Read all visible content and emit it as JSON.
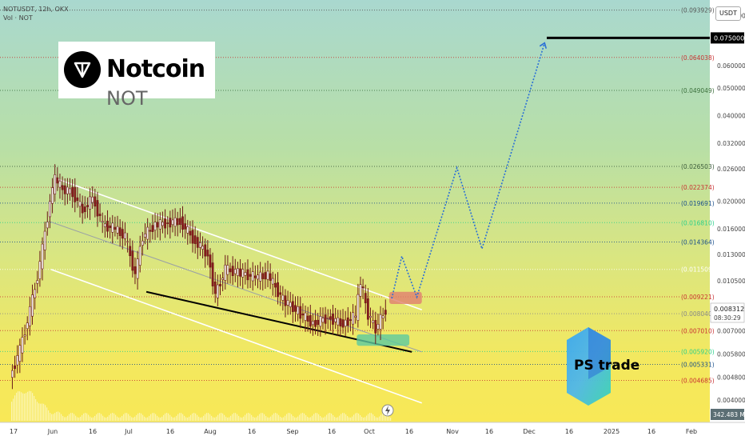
{
  "header": {
    "symbol": "NOTUSDT, 12h, OKX",
    "volume_label": "Vol · NOT"
  },
  "logo": {
    "name": "Notcoin",
    "ticker": "NOT"
  },
  "currency_button": "USDT",
  "branding": {
    "name": "PS trade"
  },
  "price_axis": {
    "ticks": [
      "0.090000",
      "0.060000",
      "0.050000",
      "0.040000",
      "0.032000",
      "0.026000",
      "0.020000",
      "0.016000",
      "0.013000",
      "0.010500",
      "0.007000",
      "0.005800",
      "0.004800",
      "0.004000"
    ],
    "current_price": "0.008312",
    "countdown": "08:30:29",
    "target_price": "0.075000",
    "volume_readout": "342.483 M"
  },
  "time_axis": [
    "17",
    "Jun",
    "16",
    "Jul",
    "16",
    "Aug",
    "16",
    "Sep",
    "16",
    "Oct",
    "16",
    "Nov",
    "16",
    "Dec",
    "16",
    "2025",
    "16",
    "Feb"
  ],
  "chart_data": {
    "type": "candlestick",
    "symbol": "NOTUSDT",
    "interval": "12h",
    "exchange": "OKX",
    "scale": "log",
    "levels": [
      {
        "price": "0.093929",
        "color": "#555555"
      },
      {
        "price": "0.075000",
        "color": "#000000",
        "role": "target"
      },
      {
        "price": "0.064038",
        "color": "#c83232"
      },
      {
        "price": "0.049049",
        "color": "#3a6e3a"
      },
      {
        "price": "0.026503",
        "color": "#3a5a3a"
      },
      {
        "price": "0.022374",
        "color": "#c83232"
      },
      {
        "price": "0.019691",
        "color": "#1a4f8a"
      },
      {
        "price": "0.016810",
        "color": "#2bd18a"
      },
      {
        "price": "0.014364",
        "color": "#1a4f8a"
      },
      {
        "price": "0.011509",
        "color": "#ffffff"
      },
      {
        "price": "0.009221",
        "color": "#c83232"
      },
      {
        "price": "0.008040",
        "color": "#888888"
      },
      {
        "price": "0.007010",
        "color": "#c83232"
      },
      {
        "price": "0.005920",
        "color": "#2bd18a"
      },
      {
        "price": "0.005331",
        "color": "#1a4f8a"
      },
      {
        "price": "0.004685",
        "color": "#c83232"
      }
    ],
    "price_series": [
      [
        "2024-05-16",
        0.0048
      ],
      [
        "2024-05-20",
        0.006
      ],
      [
        "2024-05-24",
        0.0082
      ],
      [
        "2024-05-28",
        0.012
      ],
      [
        "2024-06-01",
        0.02
      ],
      [
        "2024-06-03",
        0.024
      ],
      [
        "2024-06-06",
        0.022
      ],
      [
        "2024-06-10",
        0.0215
      ],
      [
        "2024-06-14",
        0.0185
      ],
      [
        "2024-06-18",
        0.0205
      ],
      [
        "2024-06-22",
        0.0165
      ],
      [
        "2024-06-27",
        0.016
      ],
      [
        "2024-07-01",
        0.015
      ],
      [
        "2024-07-05",
        0.011
      ],
      [
        "2024-07-08",
        0.015
      ],
      [
        "2024-07-13",
        0.0165
      ],
      [
        "2024-07-18",
        0.0168
      ],
      [
        "2024-07-23",
        0.017
      ],
      [
        "2024-07-28",
        0.0148
      ],
      [
        "2024-08-03",
        0.013
      ],
      [
        "2024-08-06",
        0.0094
      ],
      [
        "2024-08-10",
        0.0115
      ],
      [
        "2024-08-16",
        0.0112
      ],
      [
        "2024-08-22",
        0.0108
      ],
      [
        "2024-08-27",
        0.011
      ],
      [
        "2024-09-02",
        0.009
      ],
      [
        "2024-09-08",
        0.0082
      ],
      [
        "2024-09-14",
        0.0074
      ],
      [
        "2024-09-20",
        0.0078
      ],
      [
        "2024-09-26",
        0.0074
      ],
      [
        "2024-10-01",
        0.0079
      ],
      [
        "2024-10-03",
        0.0104
      ],
      [
        "2024-10-06",
        0.008
      ],
      [
        "2024-10-09",
        0.0071
      ],
      [
        "2024-10-13",
        0.0083
      ]
    ],
    "channel": {
      "upper": [
        [
          "2024-06-03",
          0.024
        ],
        [
          "2024-10-27",
          0.0083
        ]
      ],
      "mid": [
        [
          "2024-05-31",
          0.017
        ],
        [
          "2024-10-27",
          0.0059
        ]
      ],
      "lower": [
        [
          "2024-06-01",
          0.0115
        ],
        [
          "2024-10-27",
          0.0039
        ]
      ]
    },
    "support_line": [
      [
        "2024-07-09",
        0.0096
      ],
      [
        "2024-10-23",
        0.0059
      ]
    ],
    "zones": [
      {
        "label": "",
        "x": [
          "2024-10-14",
          "2024-10-27"
        ],
        "y": [
          0.0087,
          0.0096
        ],
        "color": "#e08070"
      },
      {
        "label": "",
        "x": [
          "2024-10-01",
          "2024-10-22"
        ],
        "y": [
          0.0062,
          0.0068
        ],
        "color": "#5cc9a0"
      }
    ],
    "projection": [
      [
        "2024-10-15",
        0.0091
      ],
      [
        "2024-10-19",
        0.0128
      ],
      [
        "2024-10-25",
        0.0092
      ],
      [
        "2024-11-10",
        0.0262
      ],
      [
        "2024-11-20",
        0.0136
      ],
      [
        "2024-12-15",
        0.072
      ]
    ]
  }
}
